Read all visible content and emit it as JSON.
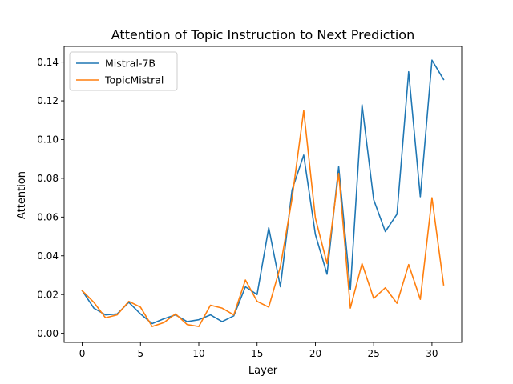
{
  "chart_data": {
    "type": "line",
    "title": "Attention of Topic Instruction to Next Prediction",
    "xlabel": "Layer",
    "ylabel": "Attention",
    "xlim": [
      -1.55,
      32.55
    ],
    "ylim": [
      -0.0047,
      0.1481
    ],
    "xticks": [
      0,
      5,
      10,
      15,
      20,
      25,
      30
    ],
    "xtick_labels": [
      "0",
      "5",
      "10",
      "15",
      "20",
      "25",
      "30"
    ],
    "yticks": [
      0.0,
      0.02,
      0.04,
      0.06,
      0.08,
      0.1,
      0.12,
      0.14
    ],
    "ytick_labels": [
      "0.00",
      "0.02",
      "0.04",
      "0.06",
      "0.08",
      "0.10",
      "0.12",
      "0.14"
    ],
    "grid": false,
    "legend_position": "top-left",
    "x": [
      0,
      1,
      2,
      3,
      4,
      5,
      6,
      7,
      8,
      9,
      10,
      11,
      12,
      13,
      14,
      15,
      16,
      17,
      18,
      19,
      20,
      21,
      22,
      23,
      24,
      25,
      26,
      27,
      28,
      29,
      30,
      31
    ],
    "series": [
      {
        "name": "Mistral-7B",
        "color": "#1f77b4",
        "values": [
          0.022,
          0.013,
          0.0095,
          0.01,
          0.016,
          0.01,
          0.005,
          0.0075,
          0.0095,
          0.006,
          0.007,
          0.0095,
          0.006,
          0.009,
          0.024,
          0.02,
          0.0545,
          0.024,
          0.074,
          0.092,
          0.051,
          0.0305,
          0.086,
          0.0225,
          0.118,
          0.069,
          0.0525,
          0.0615,
          0.135,
          0.0705,
          0.141,
          0.131
        ]
      },
      {
        "name": "TopicMistral",
        "color": "#ff7f0e",
        "values": [
          0.022,
          0.016,
          0.008,
          0.0095,
          0.0165,
          0.0135,
          0.0035,
          0.0055,
          0.01,
          0.0045,
          0.0035,
          0.0145,
          0.013,
          0.0095,
          0.0275,
          0.0165,
          0.0135,
          0.0345,
          0.0695,
          0.115,
          0.0595,
          0.036,
          0.0825,
          0.013,
          0.036,
          0.018,
          0.0235,
          0.0155,
          0.0355,
          0.0175,
          0.07,
          0.025
        ]
      }
    ]
  }
}
